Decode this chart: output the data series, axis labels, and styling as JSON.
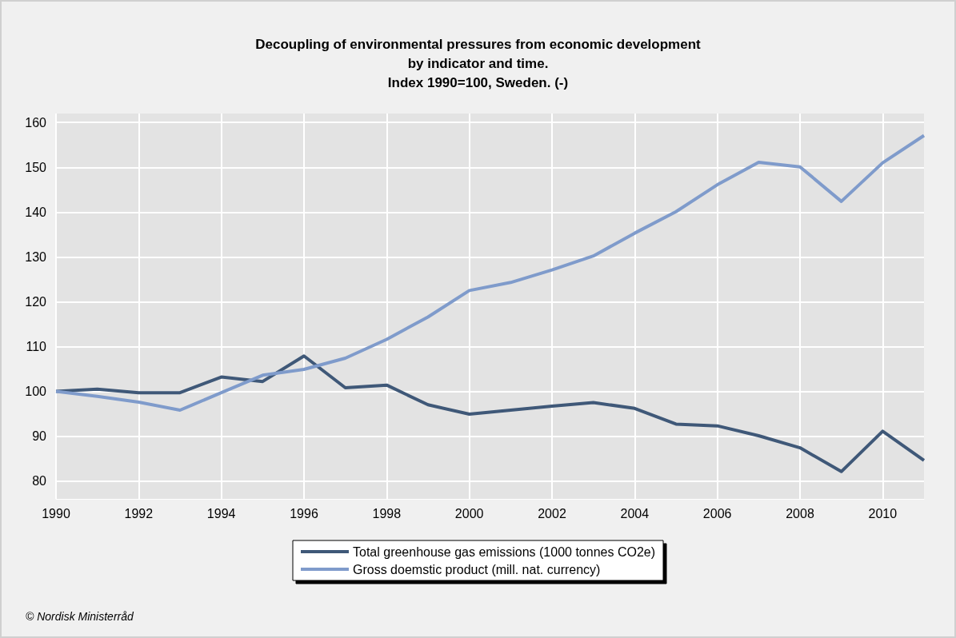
{
  "chart_data": {
    "type": "line",
    "title": "Decoupling of environmental pressures from economic development\nby indicator and time.\nIndex 1990=100, Sweden. (-)",
    "x": [
      1990,
      1991,
      1992,
      1993,
      1994,
      1995,
      1996,
      1997,
      1998,
      1999,
      2000,
      2001,
      2002,
      2003,
      2004,
      2005,
      2006,
      2007,
      2008,
      2009,
      2010,
      2011
    ],
    "series": [
      {
        "name": "Total greenhouse gas emissions (1000 tonnes CO2e)",
        "color": "#3f5878",
        "values": [
          100,
          100.5,
          99.7,
          99.7,
          103.2,
          102.2,
          107.9,
          100.8,
          101.4,
          97,
          94.9,
          95.8,
          96.7,
          97.5,
          96.2,
          92.7,
          92.3,
          90.1,
          87.4,
          82.1,
          91.1,
          84.6
        ]
      },
      {
        "name": "Gross doemstic product (mill. nat. currency)",
        "color": "#7f9bcb",
        "values": [
          100,
          98.9,
          97.6,
          95.8,
          99.7,
          103.6,
          104.9,
          107.4,
          111.6,
          116.6,
          122.5,
          124.3,
          127.1,
          130.2,
          135.3,
          140.1,
          146.1,
          151.1,
          150.1,
          142.4,
          151,
          157.1
        ]
      }
    ],
    "xlim": [
      1990,
      2011
    ],
    "xticks": [
      1990,
      1992,
      1994,
      1996,
      1998,
      2000,
      2002,
      2004,
      2006,
      2008,
      2010
    ],
    "ylim": [
      76,
      162
    ],
    "yticks": [
      80,
      90,
      100,
      110,
      120,
      130,
      140,
      150,
      160
    ],
    "grid": true,
    "legend": "bottom",
    "marker": "none",
    "line_style": "solid",
    "annotations": [
      "© Nordisk Ministerråd"
    ]
  }
}
